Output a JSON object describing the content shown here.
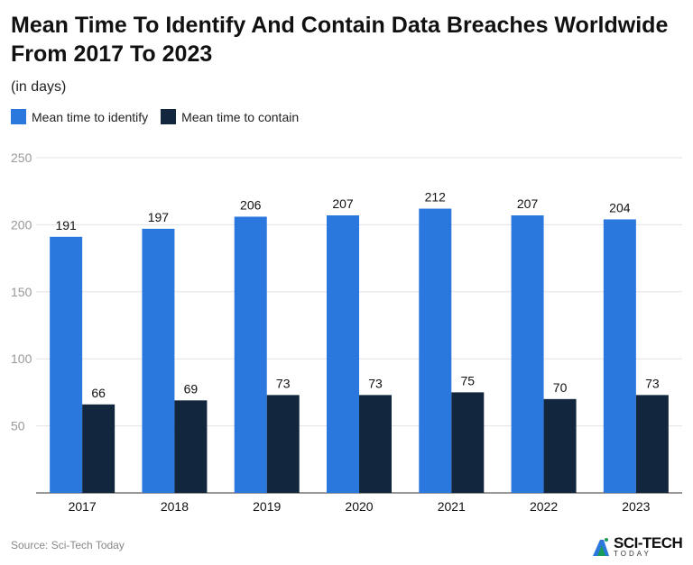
{
  "title": "Mean Time To Identify And Contain Data Breaches Worldwide From 2017 To 2023",
  "subtitle": "(in days)",
  "source": "Source: Sci-Tech Today",
  "logo": {
    "name": "SCI-TECH",
    "tagline": "TODAY"
  },
  "colors": {
    "identify": "#2a77dd",
    "contain": "#12263e",
    "grid": "#e3e3e3"
  },
  "chart_data": {
    "type": "bar",
    "title": "Mean Time To Identify And Contain Data Breaches Worldwide From 2017 To 2023",
    "subtitle": "(in days)",
    "categories": [
      "2017",
      "2018",
      "2019",
      "2020",
      "2021",
      "2022",
      "2023"
    ],
    "series": [
      {
        "name": "Mean time to identify",
        "values": [
          191,
          197,
          206,
          207,
          212,
          207,
          204
        ]
      },
      {
        "name": "Mean time to contain",
        "values": [
          66,
          69,
          73,
          73,
          75,
          70,
          73
        ]
      }
    ],
    "ylim": [
      0,
      250
    ],
    "yticks": [
      50,
      100,
      150,
      200,
      250
    ],
    "grid": true,
    "legend": "top-left"
  }
}
